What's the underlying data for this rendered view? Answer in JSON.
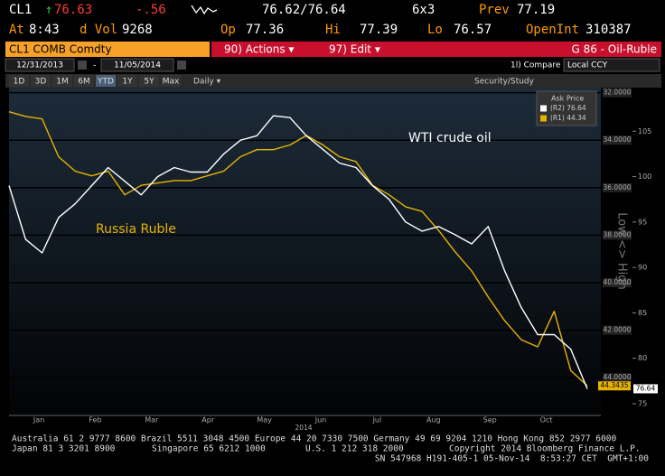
{
  "quote": {
    "ticker": "CL1",
    "last": "76.63",
    "change": "-.56",
    "bid_ask": "76.62/76.64",
    "size": "6x3",
    "prev_label": "Prev",
    "prev": "77.19",
    "at_label": "At",
    "time": "8:43",
    "vol_label": "d Vol",
    "vol": "9268",
    "op_label": "Op",
    "op": "77.36",
    "hi_label": "Hi",
    "hi": "77.39",
    "lo_label": "Lo",
    "lo": "76.57",
    "oi_label": "OpenInt",
    "oi": "310387"
  },
  "toolbar": {
    "security": "CL1 COMB Comdty",
    "actions": "90) Actions ▾",
    "edit": "97) Edit ▾",
    "page": "G 86 - Oil-Ruble",
    "start": "12/31/2013",
    "end": "11/05/2014",
    "compare": "1l) Compare",
    "currency": "Local CCY",
    "ranges": [
      "1D",
      "3D",
      "1M",
      "6M",
      "YTD",
      "1Y",
      "5Y",
      "Max"
    ],
    "frequency": "Daily ▾",
    "study": "Security/Study"
  },
  "chart_data": {
    "type": "line",
    "series": [
      {
        "name": "WTI crude oil",
        "color": "#ffffff",
        "values": [
          99.0,
          93.1,
          91.6,
          95.5,
          97.0,
          99.0,
          101.0,
          99.5,
          98.0,
          100.0,
          101.0,
          100.5,
          100.5,
          102.5,
          104.0,
          104.5,
          106.7,
          106.5,
          104.5,
          103.0,
          101.5,
          101.0,
          99.0,
          97.5,
          95.0,
          94.0,
          94.5,
          93.6,
          92.6,
          94.5,
          89.6,
          85.6,
          82.6,
          82.6,
          81.0,
          76.64
        ]
      },
      {
        "name": "Russia Ruble",
        "color": "#e6b400",
        "axis": "y2",
        "values": [
          32.8,
          33.0,
          33.1,
          34.7,
          35.3,
          35.5,
          35.3,
          36.3,
          35.9,
          35.8,
          35.7,
          35.7,
          35.5,
          35.3,
          34.7,
          34.4,
          34.4,
          34.2,
          33.8,
          34.2,
          34.7,
          34.9,
          35.9,
          36.3,
          36.8,
          37.0,
          37.8,
          38.7,
          39.5,
          40.6,
          41.6,
          42.4,
          42.7,
          41.2,
          43.7,
          44.3435
        ]
      }
    ],
    "ylim": [
      74.2,
      109.5
    ],
    "yticks": [
      75,
      80,
      85,
      90,
      95,
      100,
      105
    ],
    "y2lim": [
      45.4,
      31.9
    ],
    "y2ticks": [
      {
        "value": 32,
        "label": "32.0000"
      },
      {
        "value": 34,
        "label": "34.0000"
      },
      {
        "value": 36,
        "label": "36.0000"
      },
      {
        "value": 38,
        "label": "38.0000"
      },
      {
        "value": 40,
        "label": "40.0000"
      },
      {
        "value": 42,
        "label": "42.0000"
      },
      {
        "value": 44,
        "label": "44.0000"
      }
    ],
    "months": [
      "Jan",
      "Feb",
      "Mar",
      "Apr",
      "May",
      "Jun",
      "Jul",
      "Aug",
      "Sep",
      "Oct"
    ],
    "year": "2014",
    "axis_label": "Low <> High",
    "legend_title": "Ask Price",
    "legend": [
      "(R2) 76.64",
      "(R1) 44.34"
    ],
    "last_labels": [
      "76.64",
      "44.3435"
    ],
    "grid": true
  },
  "footer": {
    "line1": "Australia 61 2 9777 8600 Brazil 5511 3048 4500 Europe 44 20 7330 7500 Germany 49 69 9204 1210 Hong Kong 852 2977 6000",
    "japan": "Japan 81 3 3201 8900",
    "singapore": "Singapore 65 6212 1000",
    "us": "U.S. 1 212 318 2000",
    "copyright": "Copyright 2014 Bloomberg Finance L.P.",
    "stamp": "SN 547968 H191-405-1 05-Nov-14  8:53:27 CET  GMT+1:00"
  }
}
